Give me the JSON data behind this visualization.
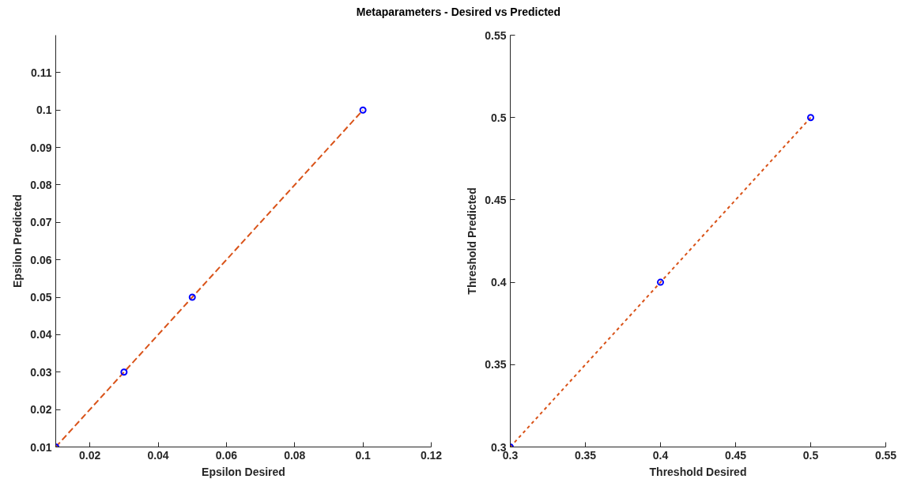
{
  "chart_data": [
    {
      "type": "scatter",
      "title": "Metaparameters - Desired vs Predicted",
      "xlabel": "Epsilon Desired",
      "ylabel": "Epsilon Predicted",
      "x": [
        0.01,
        0.03,
        0.05,
        0.1
      ],
      "xlim": [
        0.01,
        0.12
      ],
      "ylim": [
        0.01,
        0.12
      ],
      "xticks": [
        0.02,
        0.04,
        0.06,
        0.08,
        0.1,
        0.12
      ],
      "yticks": [
        0.01,
        0.02,
        0.03,
        0.04,
        0.05,
        0.06,
        0.07,
        0.08,
        0.09,
        0.1,
        0.11
      ],
      "grid": false,
      "series": [
        {
          "type": "line",
          "color": "#d95319",
          "line_style": "dashed",
          "marker": "none",
          "values": [
            0.01,
            0.03,
            0.05,
            0.1
          ]
        },
        {
          "color": "#0000ff",
          "marker": "circle",
          "values": [
            0.01,
            0.03,
            0.05,
            0.1
          ]
        }
      ]
    },
    {
      "type": "scatter",
      "xlabel": "Threshold Desired",
      "ylabel": "Threshold Predicted",
      "x": [
        0.3,
        0.4,
        0.5
      ],
      "xlim": [
        0.3,
        0.55
      ],
      "ylim": [
        0.3,
        0.55
      ],
      "xticks": [
        0.3,
        0.35,
        0.4,
        0.45,
        0.5,
        0.55
      ],
      "yticks": [
        0.3,
        0.35,
        0.4,
        0.45,
        0.5,
        0.55
      ],
      "grid": false,
      "series": [
        {
          "type": "line",
          "color": "#d95319",
          "line_style": "dotted",
          "marker": "none",
          "values": [
            0.3,
            0.4,
            0.5
          ]
        },
        {
          "color": "#0000ff",
          "marker": "circle",
          "values": [
            0.3,
            0.4,
            0.5
          ]
        }
      ]
    }
  ]
}
